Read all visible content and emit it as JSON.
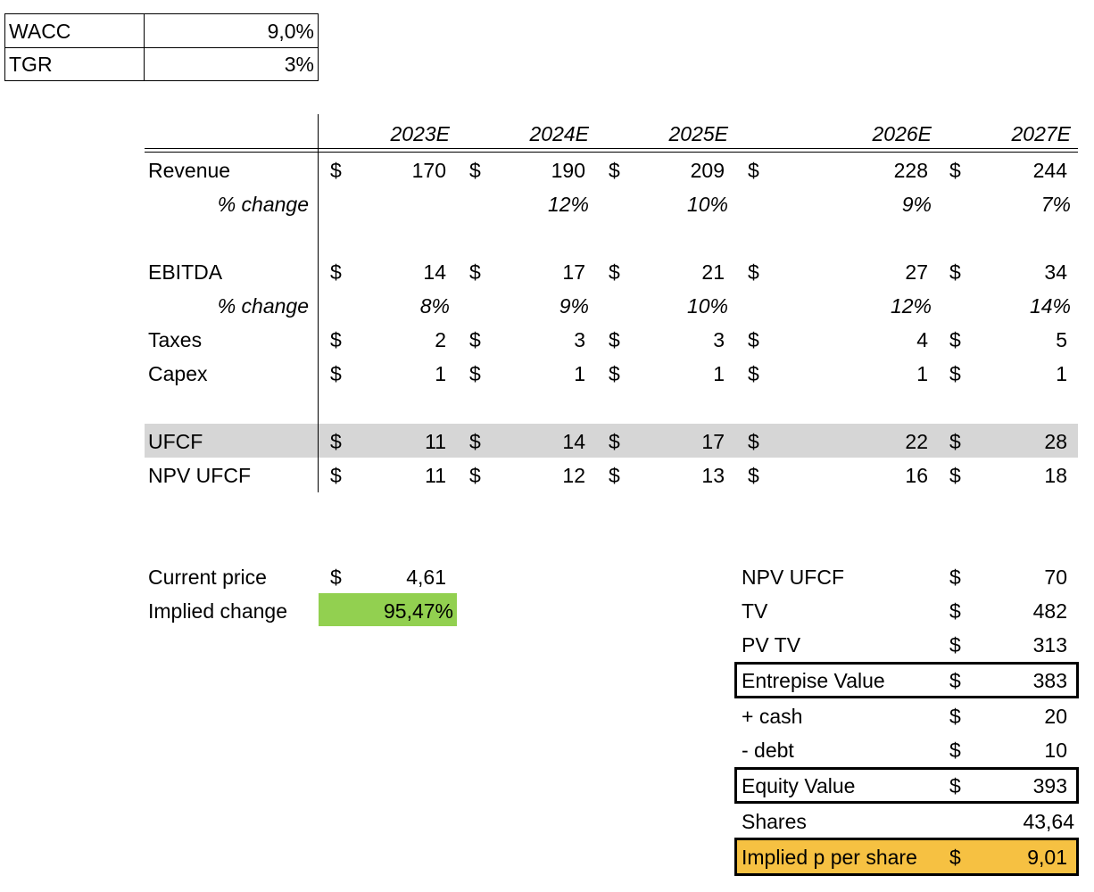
{
  "params": {
    "wacc_label": "WACC",
    "wacc_value": "9,0%",
    "tgr_label": "TGR",
    "tgr_value": "3%"
  },
  "years": [
    "2023E",
    "2024E",
    "2025E",
    "2026E",
    "2027E"
  ],
  "currency": "$",
  "rows": {
    "revenue": {
      "label": "Revenue",
      "values": [
        "170",
        "190",
        "209",
        "228",
        "244"
      ]
    },
    "revenue_change": {
      "label": "% change",
      "values": [
        "",
        "12%",
        "10%",
        "9%",
        "7%"
      ]
    },
    "ebitda": {
      "label": "EBITDA",
      "values": [
        "14",
        "17",
        "21",
        "27",
        "34"
      ]
    },
    "ebitda_change": {
      "label": "% change",
      "values": [
        "8%",
        "9%",
        "10%",
        "12%",
        "14%"
      ]
    },
    "taxes": {
      "label": "Taxes",
      "values": [
        "2",
        "3",
        "3",
        "4",
        "5"
      ]
    },
    "capex": {
      "label": "Capex",
      "values": [
        "1",
        "1",
        "1",
        "1",
        "1"
      ]
    },
    "ufcf": {
      "label": "UFCF",
      "values": [
        "11",
        "14",
        "17",
        "22",
        "28"
      ]
    },
    "npv_ufcf": {
      "label": "NPV UFCF",
      "values": [
        "11",
        "12",
        "13",
        "16",
        "18"
      ]
    }
  },
  "price": {
    "current_label": "Current price",
    "current_value": "4,61",
    "implied_label": "Implied change",
    "implied_value": "95,47%"
  },
  "valuation": {
    "npv_ufcf_label": "NPV UFCF",
    "npv_ufcf_value": "70",
    "tv_label": "TV",
    "tv_value": "482",
    "pv_tv_label": "PV TV",
    "pv_tv_value": "313",
    "ev_label": "Entrepise Value",
    "ev_value": "383",
    "cash_label": "+ cash",
    "cash_value": "20",
    "debt_label": "- debt",
    "debt_value": "10",
    "equity_label": "Equity Value",
    "equity_value": "393",
    "shares_label": "Shares",
    "shares_value": "43,64",
    "implied_pps_label": "Implied p per share",
    "implied_pps_value": "9,01"
  },
  "colors": {
    "ufcf_band": "#d6d6d6",
    "implied_change_fill": "#92d050",
    "implied_pps_fill": "#f6c142"
  }
}
